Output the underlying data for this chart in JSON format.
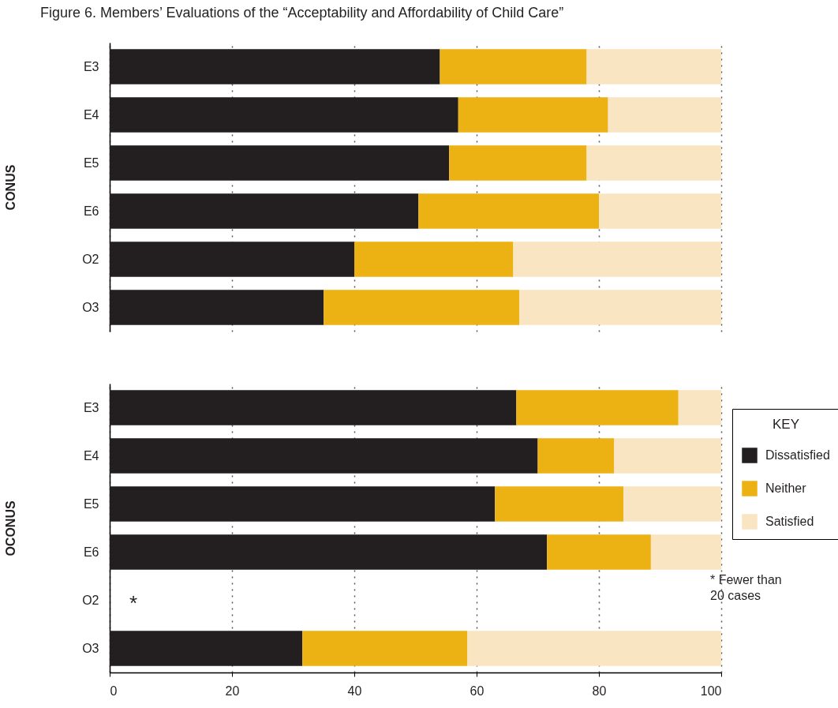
{
  "chart_data": [
    {
      "type": "bar",
      "orientation": "horizontal",
      "stacked": true,
      "title": "Figure 6. Members’ Evaluations of the “Acceptability and Affordability of Child Care”",
      "ylabel": "CONUS",
      "categories": [
        "E3",
        "E4",
        "E5",
        "E6",
        "O2",
        "O3"
      ],
      "series": [
        {
          "color": "#231f20",
          "values": [
            54,
            57,
            55.5,
            50.5,
            40,
            35
          ]
        },
        {
          "color": "#ecb112",
          "values": [
            24,
            24.5,
            22.5,
            29.5,
            26,
            32
          ]
        },
        {
          "color": "#fae5c2",
          "values": [
            22,
            18.5,
            22,
            20,
            34,
            33
          ]
        }
      ],
      "xlim": [
        0,
        100
      ],
      "xticks": [
        0,
        20,
        40,
        60,
        80,
        100
      ],
      "grid": "x",
      "tick_labels": "y"
    },
    {
      "type": "bar",
      "orientation": "horizontal",
      "stacked": true,
      "ylabel": "OCONUS",
      "legend_title": "KEY",
      "legend": "right",
      "categories": [
        "E3",
        "E4",
        "E5",
        "E6",
        "O2",
        "O3"
      ],
      "series": [
        {
          "name": "Dissatisfied",
          "color": "#231f20",
          "values": [
            66.5,
            70,
            63,
            71.5,
            null,
            31.5
          ]
        },
        {
          "name": "Neither",
          "color": "#ecb112",
          "values": [
            26.5,
            12.5,
            21,
            17,
            null,
            27
          ]
        },
        {
          "name": "Satisfied",
          "color": "#fae5c2",
          "values": [
            7,
            17.5,
            16,
            11.5,
            null,
            41.5
          ]
        }
      ],
      "xlim": [
        0,
        100
      ],
      "xticks": [
        0,
        20,
        40,
        60,
        80,
        100
      ],
      "grid": "x",
      "annotations": [
        "*",
        "* Fewer than 20 cases"
      ]
    }
  ]
}
